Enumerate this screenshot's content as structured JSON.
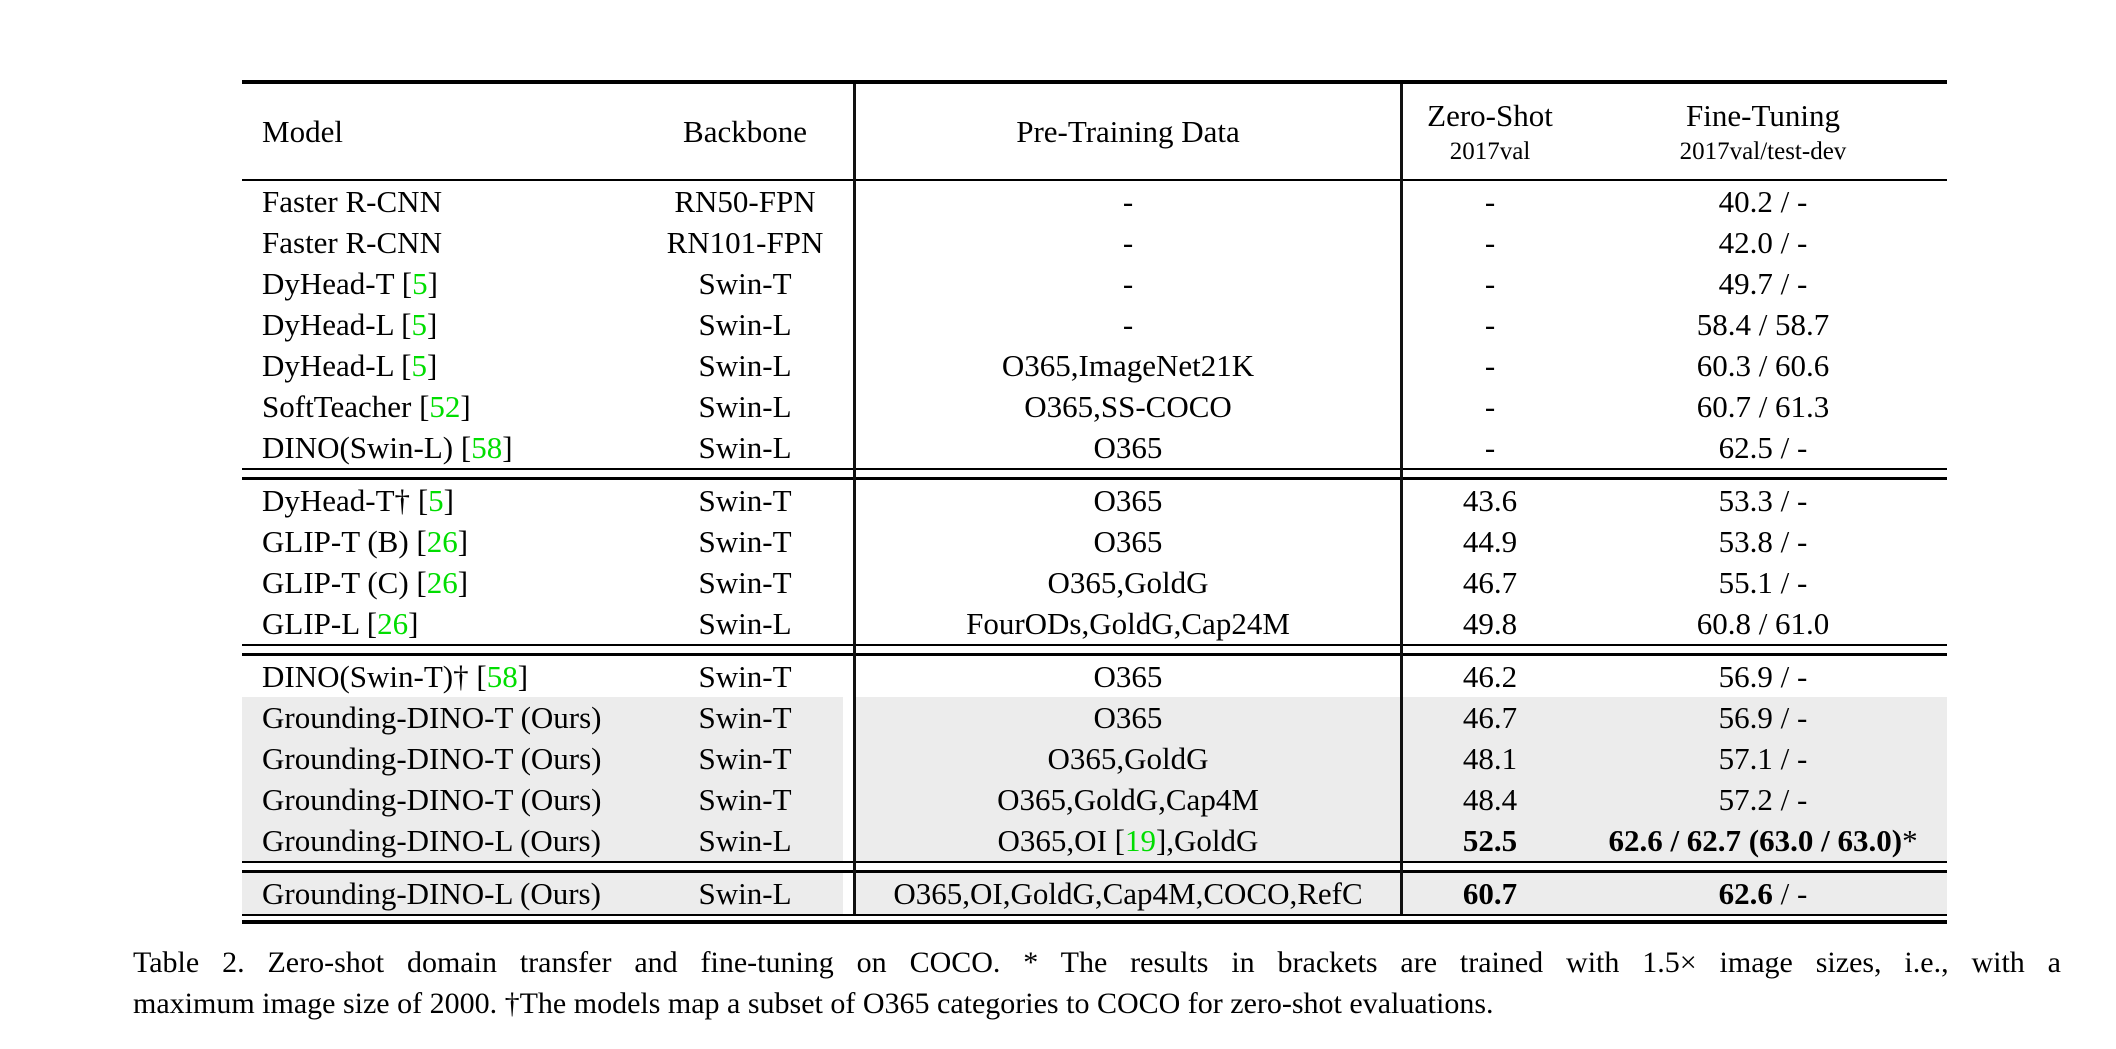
{
  "table": {
    "columns": {
      "model": "Model",
      "backbone": "Backbone",
      "pretrain": "Pre-Training Data",
      "zeroshot_title": "Zero-Shot",
      "zeroshot_subtitle": "2017val",
      "finetune_title": "Fine-Tuning",
      "finetune_subtitle": "2017val/test-dev"
    },
    "colors": {
      "highlight": "#ececec",
      "citation": "#00dd00"
    },
    "groups": [
      {
        "rows": [
          {
            "model": "Faster R-CNN",
            "backbone": "RN50-FPN",
            "pretrain": "-",
            "zeroshot": "-",
            "finetune": "40.2 / -"
          },
          {
            "model": "Faster R-CNN",
            "backbone": "RN101-FPN",
            "pretrain": "-",
            "zeroshot": "-",
            "finetune": "42.0 / -"
          },
          {
            "model": "DyHead-T",
            "ref": "5",
            "backbone": "Swin-T",
            "pretrain": "-",
            "zeroshot": "-",
            "finetune": "49.7 / -"
          },
          {
            "model": "DyHead-L",
            "ref": "5",
            "backbone": "Swin-L",
            "pretrain": "-",
            "zeroshot": "-",
            "finetune": "58.4 / 58.7"
          },
          {
            "model": "DyHead-L",
            "ref": "5",
            "backbone": "Swin-L",
            "pretrain": "O365,ImageNet21K",
            "zeroshot": "-",
            "finetune": "60.3 / 60.6"
          },
          {
            "model": "SoftTeacher",
            "ref": "52",
            "backbone": "Swin-L",
            "pretrain": "O365,SS-COCO",
            "zeroshot": "-",
            "finetune": "60.7 / 61.3"
          },
          {
            "model": "DINO(Swin-L)",
            "ref": "58",
            "backbone": "Swin-L",
            "pretrain": "O365",
            "zeroshot": "-",
            "finetune": "62.5 / -"
          }
        ]
      },
      {
        "rows": [
          {
            "model": "DyHead-T†",
            "ref": "5",
            "backbone": "Swin-T",
            "pretrain": "O365",
            "zeroshot": "43.6",
            "finetune": "53.3 / -"
          },
          {
            "model": "GLIP-T (B)",
            "ref": "26",
            "backbone": "Swin-T",
            "pretrain": "O365",
            "zeroshot": "44.9",
            "finetune": "53.8 / -"
          },
          {
            "model": "GLIP-T (C)",
            "ref": "26",
            "backbone": "Swin-T",
            "pretrain": "O365,GoldG",
            "zeroshot": "46.7",
            "finetune": "55.1 / -"
          },
          {
            "model": "GLIP-L",
            "ref": "26",
            "backbone": "Swin-L",
            "pretrain": "FourODs,GoldG,Cap24M",
            "zeroshot": "49.8",
            "finetune": "60.8 / 61.0"
          }
        ]
      },
      {
        "rows": [
          {
            "model": "DINO(Swin-T)†",
            "ref": "58",
            "backbone": "Swin-T",
            "pretrain": "O365",
            "zeroshot": "46.2",
            "finetune": "56.9 / -"
          },
          {
            "model": "Grounding-DINO-T (Ours)",
            "backbone": "Swin-T",
            "pretrain": "O365",
            "zeroshot": "46.7",
            "finetune": "56.9 / -",
            "highlight": true
          },
          {
            "model": "Grounding-DINO-T (Ours)",
            "backbone": "Swin-T",
            "pretrain": "O365,GoldG",
            "zeroshot": "48.1",
            "finetune": "57.1 / -",
            "highlight": true
          },
          {
            "model": "Grounding-DINO-T (Ours)",
            "backbone": "Swin-T",
            "pretrain": "O365,GoldG,Cap4M",
            "zeroshot": "48.4",
            "finetune": "57.2 / -",
            "highlight": true
          },
          {
            "model": "Grounding-DINO-L (Ours)",
            "backbone": "Swin-L",
            "pretrain": {
              "pre": "O365,OI [",
              "ref": "19",
              "post": "],GoldG"
            },
            "zeroshot": "52.5",
            "zeroshot_bold": true,
            "finetune": {
              "bold": "62.6 / 62.7 (63.0 / 63.0)",
              "normal": "*"
            },
            "highlight": true
          }
        ]
      },
      {
        "rows": [
          {
            "model": "Grounding-DINO-L (Ours)",
            "backbone": "Swin-L",
            "pretrain": "O365,OI,GoldG,Cap4M,COCO,RefC",
            "zeroshot": "60.7",
            "zeroshot_bold": true,
            "finetune": {
              "bold": "62.6",
              "normal": " / -"
            },
            "highlight": true
          }
        ]
      }
    ]
  },
  "caption": {
    "line1": "Table 2. Zero-shot domain transfer and fine-tuning on COCO. * The results in brackets are trained with 1.5× image sizes, i.e., with a",
    "line2": "maximum image size of 2000. †The models map a subset of O365 categories to COCO for zero-shot evaluations."
  }
}
